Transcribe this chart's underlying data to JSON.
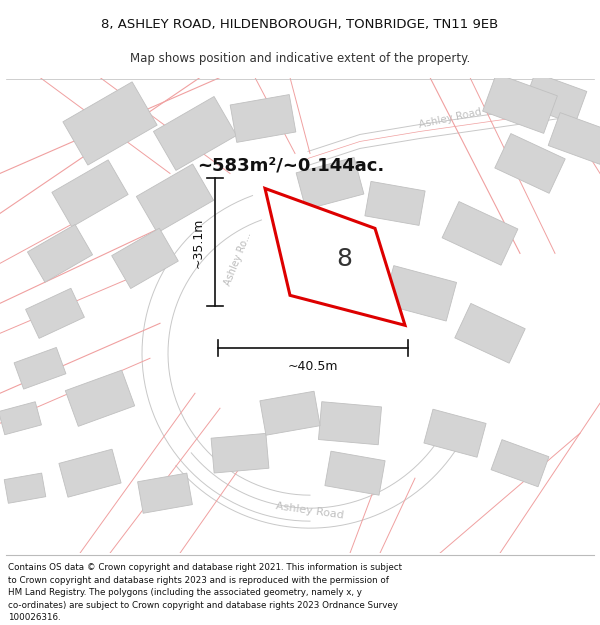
{
  "title_line1": "8, ASHLEY ROAD, HILDENBOROUGH, TONBRIDGE, TN11 9EB",
  "title_line2": "Map shows position and indicative extent of the property.",
  "area_label": "~583m²/~0.144ac.",
  "property_number": "8",
  "dim_width": "~40.5m",
  "dim_height": "~35.1m",
  "footer_text": "Contains OS data © Crown copyright and database right 2021. This information is subject to Crown copyright and database rights 2023 and is reproduced with the permission of HM Land Registry. The polygons (including the associated geometry, namely x, y co-ordinates) are subject to Crown copyright and database rights 2023 Ordnance Survey 100026316.",
  "bg_color": "#ffffff",
  "road_line_color": "#f0a0a0",
  "road_gray_color": "#c8c8c8",
  "building_fill": "#d4d4d4",
  "building_edge": "#c0c0c0",
  "property_line_color": "#dd0000",
  "property_fill": "#ffffff",
  "title_fontsize": 9.5,
  "subtitle_fontsize": 8.5,
  "footer_fontsize": 6.3
}
